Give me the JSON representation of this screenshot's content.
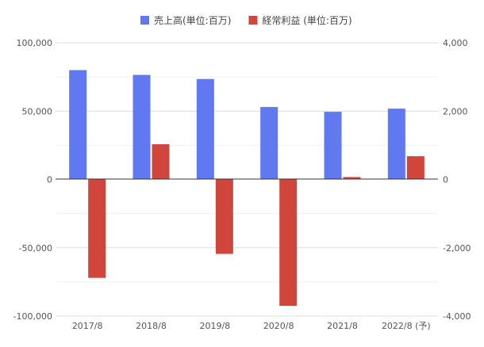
{
  "chart_data": {
    "type": "bar",
    "categories": [
      "2017/8",
      "2018/8",
      "2019/8",
      "2020/8",
      "2021/8",
      "2022/8 (予)"
    ],
    "series": [
      {
        "name": "売上高(単位:百万)",
        "axis": "left",
        "color": "#6078f0",
        "values": [
          80000,
          76500,
          73500,
          53000,
          49500,
          51800
        ]
      },
      {
        "name": "経常利益 (単位:百万)",
        "axis": "right",
        "color": "#d0463c",
        "values": [
          -2880,
          1030,
          -2180,
          -3700,
          70,
          680
        ]
      }
    ],
    "left_axis": {
      "ylim": [
        -100000,
        100000
      ],
      "ticks": [
        -100000,
        -50000,
        0,
        50000,
        100000
      ],
      "tick_labels": [
        "-100,000",
        "-50,000",
        "0",
        "50,000",
        "100,000"
      ]
    },
    "right_axis": {
      "ylim": [
        -4000,
        4000
      ],
      "ticks": [
        -4000,
        -2000,
        0,
        2000,
        4000
      ],
      "tick_labels": [
        "-4,000",
        "-2,000",
        "0",
        "2,000",
        "4,000"
      ]
    },
    "grid": true,
    "legend": "top-center"
  }
}
